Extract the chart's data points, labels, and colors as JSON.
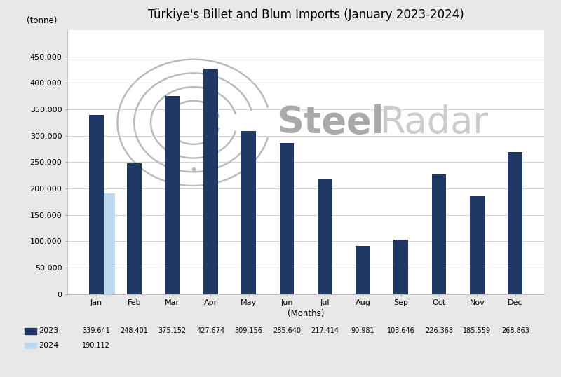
{
  "title": "Türkiye's Billet and Blum Imports (January 2023-2024)",
  "ylabel": "(tonne)",
  "xlabel": "(Months)",
  "months": [
    "Jan",
    "Feb",
    "Mar",
    "Apr",
    "May",
    "Jun",
    "Jul",
    "Aug",
    "Sep",
    "Oct",
    "Nov",
    "Dec"
  ],
  "data_2023": [
    339641,
    248401,
    375152,
    427674,
    309156,
    285640,
    217414,
    90981,
    103646,
    226368,
    185559,
    268863
  ],
  "data_2024_jan": 190112,
  "bar_color_2023": "#1F3864",
  "bar_color_2024": "#BDD7EE",
  "background_color": "#E8E8E8",
  "plot_bg_color": "#FFFFFF",
  "ylim": [
    0,
    500000
  ],
  "yticks": [
    0,
    50000,
    100000,
    150000,
    200000,
    250000,
    300000,
    350000,
    400000,
    450000
  ],
  "ytick_labels": [
    "0",
    "50.000",
    "100.000",
    "150.000",
    "200.000",
    "250.000",
    "300.000",
    "350.000",
    "400.000",
    "450.000"
  ],
  "legend_2023_label": "2023",
  "legend_2024_label": "2024",
  "legend_values_2023": [
    "339.641",
    "248.401",
    "375.152",
    "427.674",
    "309.156",
    "285.640",
    "217.414",
    "90.981",
    "103.646",
    "226.368",
    "185.559",
    "268.863"
  ],
  "legend_values_2024": [
    "190.112"
  ],
  "title_fontsize": 12,
  "axis_label_fontsize": 8.5,
  "tick_fontsize": 8,
  "legend_fontsize": 8
}
